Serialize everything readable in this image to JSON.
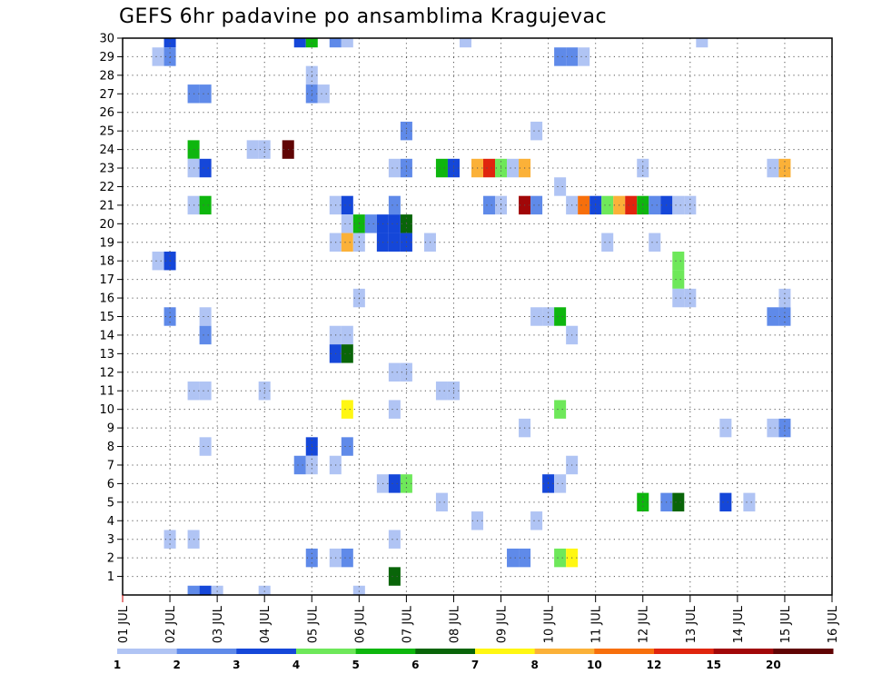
{
  "title": "GEFS 6hr padavine po ansamblima Kragujevac",
  "chart_data": {
    "type": "heatmap",
    "title": "GEFS 6hr padavine po ansamblima Kragujevac",
    "xlabel": "",
    "ylabel": "",
    "x_ticks": [
      "01 JUL",
      "02 JUL",
      "03 JUL",
      "04 JUL",
      "05 JUL",
      "06 JUL",
      "07 JUL",
      "08 JUL",
      "09 JUL",
      "10 JUL",
      "11 JUL",
      "12 JUL",
      "13 JUL",
      "14 JUL",
      "15 JUL",
      "16 JUL"
    ],
    "y_ticks": [
      1,
      2,
      3,
      4,
      5,
      6,
      7,
      8,
      9,
      10,
      11,
      12,
      13,
      14,
      15,
      16,
      17,
      18,
      19,
      20,
      21,
      22,
      23,
      24,
      25,
      26,
      27,
      28,
      29,
      30
    ],
    "xlim_days": [
      1,
      16
    ],
    "ylim": [
      0,
      30
    ],
    "grid": true,
    "colorbar": {
      "levels": [
        "1",
        "2",
        "3",
        "4",
        "5",
        "6",
        "7",
        "8",
        "10",
        "12",
        "15",
        "20"
      ],
      "colors": [
        "#b0c4f4",
        "#5f8ae9",
        "#1547d9",
        "#6ee85a",
        "#0eb60e",
        "#096509",
        "#fff712",
        "#fbb138",
        "#f76f0c",
        "#e0250e",
        "#a10708",
        "#600404"
      ]
    },
    "cells": [
      {
        "member": 30,
        "day": 2.0,
        "mm": 3.0
      },
      {
        "member": 30,
        "day": 4.75,
        "mm": 3.0
      },
      {
        "member": 30,
        "day": 5.0,
        "mm": 5.0
      },
      {
        "member": 30,
        "day": 5.5,
        "mm": 2.0
      },
      {
        "member": 30,
        "day": 5.75,
        "mm": 1.0
      },
      {
        "member": 30,
        "day": 8.25,
        "mm": 1.0
      },
      {
        "member": 30,
        "day": 13.25,
        "mm": 1.0
      },
      {
        "member": 29,
        "day": 1.75,
        "mm": 1.0
      },
      {
        "member": 29,
        "day": 2.0,
        "mm": 2.0
      },
      {
        "member": 29,
        "day": 10.25,
        "mm": 2.0
      },
      {
        "member": 29,
        "day": 10.5,
        "mm": 2.0
      },
      {
        "member": 29,
        "day": 10.75,
        "mm": 1.0
      },
      {
        "member": 28,
        "day": 5.0,
        "mm": 1.0
      },
      {
        "member": 27,
        "day": 2.5,
        "mm": 2.0
      },
      {
        "member": 27,
        "day": 2.75,
        "mm": 2.0
      },
      {
        "member": 27,
        "day": 5.0,
        "mm": 2.0
      },
      {
        "member": 27,
        "day": 5.25,
        "mm": 1.0
      },
      {
        "member": 25,
        "day": 7.0,
        "mm": 2.0
      },
      {
        "member": 25,
        "day": 9.75,
        "mm": 1.0
      },
      {
        "member": 24,
        "day": 2.5,
        "mm": 5.0
      },
      {
        "member": 24,
        "day": 3.75,
        "mm": 1.0
      },
      {
        "member": 24,
        "day": 4.0,
        "mm": 1.0
      },
      {
        "member": 24,
        "day": 4.5,
        "mm": 20.0
      },
      {
        "member": 23,
        "day": 2.5,
        "mm": 1.0
      },
      {
        "member": 23,
        "day": 2.75,
        "mm": 3.0
      },
      {
        "member": 23,
        "day": 6.75,
        "mm": 1.0
      },
      {
        "member": 23,
        "day": 7.0,
        "mm": 2.0
      },
      {
        "member": 23,
        "day": 7.75,
        "mm": 5.0
      },
      {
        "member": 23,
        "day": 8.0,
        "mm": 3.0
      },
      {
        "member": 23,
        "day": 8.5,
        "mm": 8.0
      },
      {
        "member": 23,
        "day": 8.75,
        "mm": 12.0
      },
      {
        "member": 23,
        "day": 9.0,
        "mm": 4.0
      },
      {
        "member": 23,
        "day": 9.25,
        "mm": 1.0
      },
      {
        "member": 23,
        "day": 9.5,
        "mm": 8.0
      },
      {
        "member": 23,
        "day": 12.0,
        "mm": 1.0
      },
      {
        "member": 23,
        "day": 14.75,
        "mm": 1.0
      },
      {
        "member": 23,
        "day": 15.0,
        "mm": 8.0
      },
      {
        "member": 22,
        "day": 10.25,
        "mm": 1.0
      },
      {
        "member": 21,
        "day": 2.5,
        "mm": 1.0
      },
      {
        "member": 21,
        "day": 2.75,
        "mm": 5.0
      },
      {
        "member": 21,
        "day": 5.5,
        "mm": 1.0
      },
      {
        "member": 21,
        "day": 5.75,
        "mm": 3.0
      },
      {
        "member": 21,
        "day": 6.75,
        "mm": 2.0
      },
      {
        "member": 21,
        "day": 8.75,
        "mm": 2.0
      },
      {
        "member": 21,
        "day": 9.0,
        "mm": 1.0
      },
      {
        "member": 21,
        "day": 9.5,
        "mm": 15.0
      },
      {
        "member": 21,
        "day": 9.75,
        "mm": 2.0
      },
      {
        "member": 21,
        "day": 10.5,
        "mm": 1.0
      },
      {
        "member": 21,
        "day": 10.75,
        "mm": 10.0
      },
      {
        "member": 21,
        "day": 11.0,
        "mm": 3.0
      },
      {
        "member": 21,
        "day": 11.25,
        "mm": 4.0
      },
      {
        "member": 21,
        "day": 11.5,
        "mm": 8.0
      },
      {
        "member": 21,
        "day": 11.75,
        "mm": 12.0
      },
      {
        "member": 21,
        "day": 12.0,
        "mm": 5.0
      },
      {
        "member": 21,
        "day": 12.25,
        "mm": 2.0
      },
      {
        "member": 21,
        "day": 12.5,
        "mm": 3.0
      },
      {
        "member": 21,
        "day": 12.75,
        "mm": 1.0
      },
      {
        "member": 21,
        "day": 13.0,
        "mm": 1.0
      },
      {
        "member": 20,
        "day": 5.75,
        "mm": 1.0
      },
      {
        "member": 20,
        "day": 6.0,
        "mm": 5.0
      },
      {
        "member": 20,
        "day": 6.25,
        "mm": 2.0
      },
      {
        "member": 20,
        "day": 6.5,
        "mm": 3.0
      },
      {
        "member": 20,
        "day": 6.75,
        "mm": 3.0
      },
      {
        "member": 20,
        "day": 7.0,
        "mm": 6.0
      },
      {
        "member": 19,
        "day": 5.5,
        "mm": 1.0
      },
      {
        "member": 19,
        "day": 5.75,
        "mm": 8.0
      },
      {
        "member": 19,
        "day": 6.0,
        "mm": 1.0
      },
      {
        "member": 19,
        "day": 6.5,
        "mm": 3.0
      },
      {
        "member": 19,
        "day": 6.75,
        "mm": 3.0
      },
      {
        "member": 19,
        "day": 7.0,
        "mm": 3.0
      },
      {
        "member": 19,
        "day": 7.5,
        "mm": 1.0
      },
      {
        "member": 19,
        "day": 11.25,
        "mm": 1.0
      },
      {
        "member": 19,
        "day": 12.25,
        "mm": 1.0
      },
      {
        "member": 18,
        "day": 1.75,
        "mm": 1.0
      },
      {
        "member": 18,
        "day": 2.0,
        "mm": 3.0
      },
      {
        "member": 18,
        "day": 12.75,
        "mm": 4.0
      },
      {
        "member": 17,
        "day": 12.75,
        "mm": 4.0
      },
      {
        "member": 16,
        "day": 6.0,
        "mm": 1.0
      },
      {
        "member": 16,
        "day": 12.75,
        "mm": 1.0
      },
      {
        "member": 16,
        "day": 13.0,
        "mm": 1.0
      },
      {
        "member": 16,
        "day": 15.0,
        "mm": 1.0
      },
      {
        "member": 15,
        "day": 2.0,
        "mm": 2.0
      },
      {
        "member": 15,
        "day": 2.75,
        "mm": 1.0
      },
      {
        "member": 15,
        "day": 9.75,
        "mm": 1.0
      },
      {
        "member": 15,
        "day": 10.0,
        "mm": 1.0
      },
      {
        "member": 15,
        "day": 10.25,
        "mm": 5.0
      },
      {
        "member": 15,
        "day": 14.75,
        "mm": 2.0
      },
      {
        "member": 15,
        "day": 15.0,
        "mm": 2.0
      },
      {
        "member": 14,
        "day": 2.75,
        "mm": 2.0
      },
      {
        "member": 14,
        "day": 5.5,
        "mm": 1.0
      },
      {
        "member": 14,
        "day": 5.75,
        "mm": 1.0
      },
      {
        "member": 14,
        "day": 10.5,
        "mm": 1.0
      },
      {
        "member": 13,
        "day": 5.5,
        "mm": 3.0
      },
      {
        "member": 13,
        "day": 5.75,
        "mm": 6.0
      },
      {
        "member": 12,
        "day": 6.75,
        "mm": 1.0
      },
      {
        "member": 12,
        "day": 7.0,
        "mm": 1.0
      },
      {
        "member": 11,
        "day": 2.5,
        "mm": 1.0
      },
      {
        "member": 11,
        "day": 2.75,
        "mm": 1.0
      },
      {
        "member": 11,
        "day": 4.0,
        "mm": 1.0
      },
      {
        "member": 11,
        "day": 7.75,
        "mm": 1.0
      },
      {
        "member": 11,
        "day": 8.0,
        "mm": 1.0
      },
      {
        "member": 10,
        "day": 5.75,
        "mm": 7.0
      },
      {
        "member": 10,
        "day": 6.75,
        "mm": 1.0
      },
      {
        "member": 10,
        "day": 10.25,
        "mm": 4.0
      },
      {
        "member": 9,
        "day": 9.5,
        "mm": 1.0
      },
      {
        "member": 9,
        "day": 13.75,
        "mm": 1.0
      },
      {
        "member": 9,
        "day": 14.75,
        "mm": 1.0
      },
      {
        "member": 9,
        "day": 15.0,
        "mm": 2.0
      },
      {
        "member": 8,
        "day": 2.75,
        "mm": 1.0
      },
      {
        "member": 8,
        "day": 5.0,
        "mm": 3.0
      },
      {
        "member": 8,
        "day": 5.75,
        "mm": 2.0
      },
      {
        "member": 7,
        "day": 4.75,
        "mm": 2.0
      },
      {
        "member": 7,
        "day": 5.0,
        "mm": 1.0
      },
      {
        "member": 7,
        "day": 5.5,
        "mm": 1.0
      },
      {
        "member": 7,
        "day": 10.5,
        "mm": 1.0
      },
      {
        "member": 6,
        "day": 6.5,
        "mm": 1.0
      },
      {
        "member": 6,
        "day": 6.75,
        "mm": 3.0
      },
      {
        "member": 6,
        "day": 7.0,
        "mm": 4.0
      },
      {
        "member": 6,
        "day": 10.0,
        "mm": 3.0
      },
      {
        "member": 6,
        "day": 10.25,
        "mm": 1.0
      },
      {
        "member": 5,
        "day": 7.75,
        "mm": 1.0
      },
      {
        "member": 5,
        "day": 12.0,
        "mm": 5.0
      },
      {
        "member": 5,
        "day": 12.5,
        "mm": 2.0
      },
      {
        "member": 5,
        "day": 12.75,
        "mm": 6.0
      },
      {
        "member": 5,
        "day": 13.75,
        "mm": 3.0
      },
      {
        "member": 5,
        "day": 14.25,
        "mm": 1.0
      },
      {
        "member": 4,
        "day": 8.5,
        "mm": 1.0
      },
      {
        "member": 4,
        "day": 9.75,
        "mm": 1.0
      },
      {
        "member": 3,
        "day": 2.0,
        "mm": 1.0
      },
      {
        "member": 3,
        "day": 2.5,
        "mm": 1.0
      },
      {
        "member": 3,
        "day": 6.75,
        "mm": 1.0
      },
      {
        "member": 2,
        "day": 5.0,
        "mm": 2.0
      },
      {
        "member": 2,
        "day": 5.5,
        "mm": 1.0
      },
      {
        "member": 2,
        "day": 5.75,
        "mm": 2.0
      },
      {
        "member": 2,
        "day": 9.25,
        "mm": 2.0
      },
      {
        "member": 2,
        "day": 9.5,
        "mm": 2.0
      },
      {
        "member": 2,
        "day": 10.25,
        "mm": 4.0
      },
      {
        "member": 2,
        "day": 10.5,
        "mm": 7.0
      },
      {
        "member": 1,
        "day": 6.75,
        "mm": 6.0
      },
      {
        "member": 0,
        "day": 2.5,
        "mm": 2.0
      },
      {
        "member": 0,
        "day": 2.75,
        "mm": 3.0
      },
      {
        "member": 0,
        "day": 3.0,
        "mm": 1.0
      },
      {
        "member": 0,
        "day": 4.0,
        "mm": 1.0
      },
      {
        "member": 0,
        "day": 6.0,
        "mm": 1.0
      }
    ]
  }
}
